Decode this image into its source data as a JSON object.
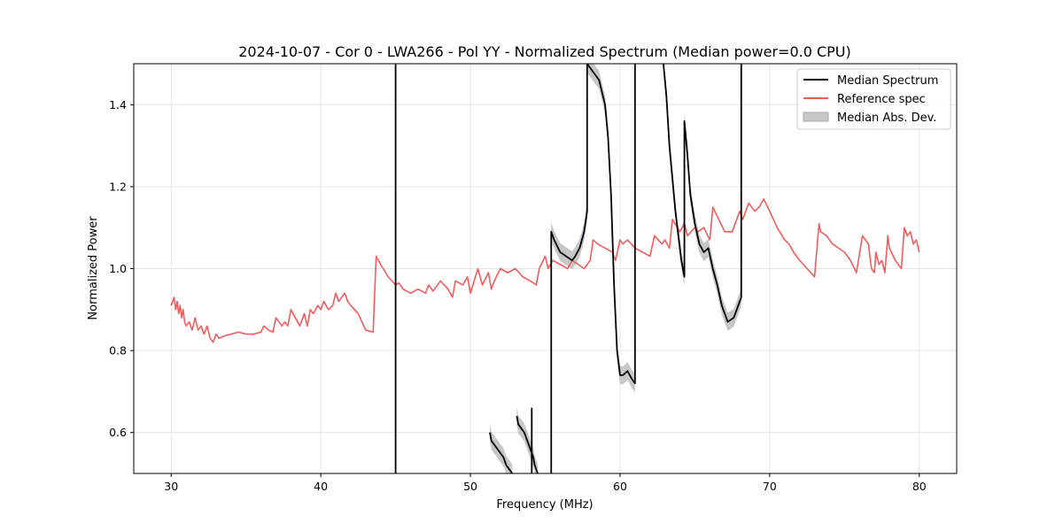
{
  "chart_data": {
    "type": "line",
    "title": "2024-10-07 - Cor 0 - LWA266 - Pol YY - Normalized Spectrum (Median power=0.0 CPU)",
    "xlabel": "Frequency (MHz)",
    "ylabel": "Normalized Power",
    "xlim": [
      27.5,
      82.5
    ],
    "ylim": [
      0.5,
      1.5
    ],
    "xticks": [
      30,
      40,
      50,
      60,
      70,
      80
    ],
    "yticks": [
      0.6,
      0.8,
      1.0,
      1.2,
      1.4
    ],
    "xtick_labels": [
      "30",
      "40",
      "50",
      "60",
      "70",
      "80"
    ],
    "ytick_labels": [
      "0.6",
      "0.8",
      "1.0",
      "1.2",
      "1.4"
    ],
    "grid": true,
    "legend_position": "top-right",
    "legend": [
      "Median Spectrum",
      "Reference spec",
      "Median Abs. Dev."
    ],
    "colors": {
      "median": "#000000",
      "reference": "#f25c5c",
      "mad": "#bfbfbf"
    },
    "series": [
      {
        "name": "Reference spec",
        "x": [
          30.0,
          30.2,
          30.3,
          30.4,
          30.5,
          30.6,
          30.7,
          30.8,
          30.9,
          31.0,
          31.2,
          31.4,
          31.6,
          31.8,
          32.0,
          32.2,
          32.4,
          32.6,
          32.8,
          33.0,
          33.2,
          33.5,
          34.0,
          34.5,
          35.0,
          35.5,
          36.0,
          36.2,
          36.5,
          36.8,
          37.0,
          37.2,
          37.4,
          37.6,
          37.8,
          38.0,
          38.3,
          38.6,
          38.9,
          39.1,
          39.3,
          39.5,
          39.8,
          40.0,
          40.2,
          40.5,
          40.8,
          41.0,
          41.2,
          41.4,
          41.6,
          41.8,
          42.0,
          42.5,
          43.0,
          43.5,
          43.7,
          44.0,
          44.5,
          45.0,
          45.2,
          45.5,
          46.0,
          46.5,
          47.0,
          47.2,
          47.5,
          48.0,
          48.5,
          48.8,
          49.0,
          49.5,
          49.8,
          50.0,
          50.5,
          50.8,
          51.2,
          51.4,
          51.6,
          52.0,
          52.5,
          53.0,
          53.5,
          54.0,
          54.4,
          54.6,
          55.0,
          55.2,
          55.5,
          56.0,
          56.5,
          56.8,
          57.2,
          57.6,
          58.0,
          58.2,
          58.5,
          59.0,
          59.5,
          59.7,
          60.0,
          60.2,
          60.5,
          61.0,
          61.5,
          62.0,
          62.3,
          62.8,
          63.0,
          63.3,
          63.5,
          64.0,
          64.3,
          64.5,
          65.0,
          65.2,
          65.6,
          66.0,
          66.2,
          66.6,
          67.0,
          67.5,
          68.0,
          68.2,
          68.6,
          69.0,
          69.3,
          69.6,
          70.0,
          70.5,
          71.0,
          71.3,
          71.6,
          72.0,
          72.5,
          73.0,
          73.3,
          73.4,
          73.8,
          74.2,
          74.6,
          75.0,
          75.4,
          75.8,
          76.2,
          76.6,
          76.8,
          77.0,
          77.1,
          77.3,
          77.5,
          77.7,
          77.9,
          78.0,
          78.4,
          78.8,
          79.0,
          79.2,
          79.4,
          79.6,
          79.8,
          80.0
        ],
        "y": [
          0.91,
          0.93,
          0.9,
          0.92,
          0.89,
          0.91,
          0.88,
          0.9,
          0.87,
          0.86,
          0.87,
          0.85,
          0.88,
          0.85,
          0.86,
          0.84,
          0.86,
          0.83,
          0.82,
          0.84,
          0.83,
          0.835,
          0.84,
          0.845,
          0.84,
          0.84,
          0.845,
          0.86,
          0.85,
          0.845,
          0.88,
          0.87,
          0.86,
          0.87,
          0.86,
          0.9,
          0.88,
          0.86,
          0.89,
          0.86,
          0.9,
          0.89,
          0.91,
          0.9,
          0.92,
          0.9,
          0.91,
          0.94,
          0.92,
          0.93,
          0.94,
          0.92,
          0.91,
          0.89,
          0.85,
          0.845,
          1.03,
          1.01,
          0.98,
          0.96,
          0.965,
          0.95,
          0.94,
          0.95,
          0.94,
          0.96,
          0.945,
          0.97,
          0.95,
          0.93,
          0.97,
          0.96,
          0.98,
          0.94,
          1.0,
          0.96,
          0.99,
          0.95,
          0.97,
          1.0,
          0.99,
          1.0,
          0.98,
          0.97,
          0.96,
          1.0,
          1.03,
          1.0,
          1.02,
          1.01,
          1.0,
          1.02,
          1.01,
          1.0,
          1.02,
          1.07,
          1.06,
          1.05,
          1.04,
          1.02,
          1.07,
          1.06,
          1.07,
          1.05,
          1.04,
          1.03,
          1.08,
          1.06,
          1.07,
          1.05,
          1.12,
          1.09,
          1.11,
          1.08,
          1.1,
          1.09,
          1.1,
          1.07,
          1.15,
          1.12,
          1.09,
          1.09,
          1.14,
          1.12,
          1.16,
          1.14,
          1.15,
          1.17,
          1.14,
          1.1,
          1.07,
          1.06,
          1.04,
          1.02,
          1.0,
          0.98,
          1.11,
          1.09,
          1.08,
          1.06,
          1.05,
          1.04,
          1.02,
          0.99,
          1.08,
          1.06,
          1.0,
          0.99,
          1.04,
          1.01,
          1.02,
          0.99,
          1.08,
          1.05,
          1.02,
          1.0,
          1.1,
          1.08,
          1.09,
          1.06,
          1.07,
          1.04
        ]
      },
      {
        "name": "Median Spectrum",
        "segments": [
          {
            "x": [
              45.0,
              45.0,
              45.0,
              45.0
            ],
            "y": [
              0.5,
              1.5,
              1.5,
              0.5
            ]
          },
          {
            "x": [
              51.3,
              51.4,
              51.6,
              51.8,
              52.0,
              52.2,
              52.4,
              52.6,
              52.8
            ],
            "y": [
              0.6,
              0.58,
              0.57,
              0.56,
              0.55,
              0.54,
              0.52,
              0.51,
              0.5
            ]
          },
          {
            "x": [
              53.1,
              53.2,
              53.4,
              53.6,
              53.8,
              54.0,
              54.2,
              54.3,
              54.5
            ],
            "y": [
              0.64,
              0.62,
              0.61,
              0.6,
              0.58,
              0.56,
              0.54,
              0.52,
              0.5
            ]
          },
          {
            "x": [
              54.1,
              54.1
            ],
            "y": [
              0.66,
              0.5
            ]
          },
          {
            "x": [
              55.4,
              55.4,
              55.6,
              56.0,
              56.4,
              56.8,
              57.0,
              57.3,
              57.6,
              57.8,
              57.8,
              58.2,
              58.6,
              59.0,
              59.2,
              59.4,
              59.6,
              59.8,
              60.0,
              60.2,
              60.5,
              60.8,
              61.0,
              61.0
            ],
            "y": [
              0.5,
              1.09,
              1.07,
              1.04,
              1.03,
              1.02,
              1.03,
              1.05,
              1.09,
              1.14,
              1.5,
              1.48,
              1.46,
              1.4,
              1.32,
              1.18,
              0.96,
              0.8,
              0.74,
              0.74,
              0.75,
              0.73,
              0.72,
              1.5
            ]
          },
          {
            "x": [
              62.9,
              63.1,
              63.3,
              63.5,
              63.7,
              63.9,
              64.1,
              64.3,
              64.3,
              64.5,
              64.7,
              65.0,
              65.3,
              65.6,
              65.9,
              66.2,
              66.5,
              66.8,
              67.2,
              67.6,
              67.9,
              68.1,
              68.1
            ],
            "y": [
              1.5,
              1.42,
              1.3,
              1.22,
              1.14,
              1.08,
              1.02,
              0.98,
              1.36,
              1.28,
              1.18,
              1.11,
              1.06,
              1.04,
              1.05,
              1.0,
              0.96,
              0.91,
              0.87,
              0.88,
              0.91,
              0.93,
              1.5
            ]
          }
        ]
      },
      {
        "name": "Median Abs. Dev.",
        "half_width": 0.022
      }
    ]
  }
}
